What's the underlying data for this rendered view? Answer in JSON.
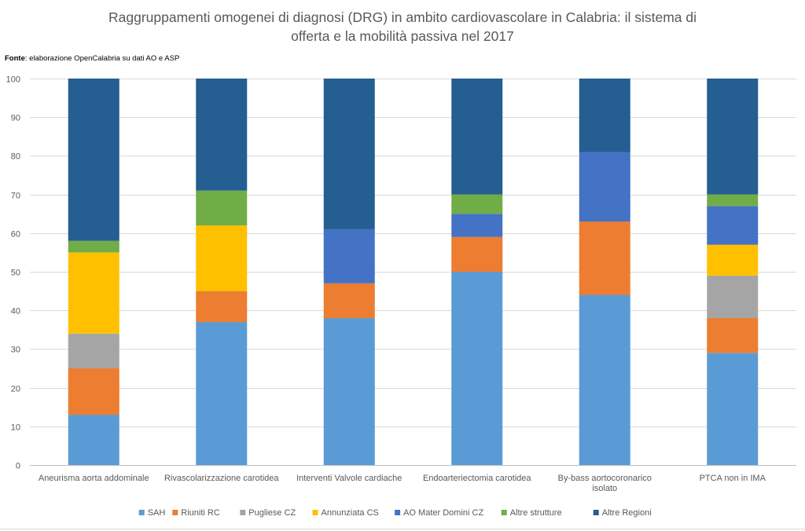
{
  "chart_data": {
    "type": "bar",
    "stacked": true,
    "title_lines": [
      "Raggruppamenti omogenei di diagnosi (DRG)  in ambito cardiovascolare in Calabria: il sistema di",
      "offerta e la mobilità passiva nel 2017"
    ],
    "source_label": "Fonte",
    "source_text": ": elaborazione OpenCalabria su dati AO e ASP",
    "categories": [
      [
        "Aneurisma aorta addominale"
      ],
      [
        "Rivascolarizzazione carotidea"
      ],
      [
        "Interventi Valvole cardiache"
      ],
      [
        "Endoarteriectomia carotidea"
      ],
      [
        "By-bass aortocoronarico",
        "isolato"
      ],
      [
        "PTCA non in IMA"
      ]
    ],
    "series": [
      {
        "name": "SAH",
        "color": "#5b9bd5",
        "values": [
          13,
          37,
          38,
          50,
          44,
          29
        ]
      },
      {
        "name": "Riuniti RC",
        "color": "#ed7d31",
        "values": [
          12,
          8,
          9,
          9,
          19,
          9
        ]
      },
      {
        "name": "Pugliese CZ",
        "color": "#a5a5a5",
        "values": [
          9,
          0,
          0,
          0,
          0,
          11
        ]
      },
      {
        "name": "Annunziata CS",
        "color": "#ffc000",
        "values": [
          21,
          17,
          0,
          0,
          0,
          8
        ]
      },
      {
        "name": "AO Mater Domini CZ",
        "color": "#4472c4",
        "values": [
          0,
          0,
          14,
          6,
          18,
          10
        ]
      },
      {
        "name": "Altre strutture",
        "color": "#70ad47",
        "values": [
          3,
          9,
          0,
          5,
          0,
          3
        ]
      },
      {
        "name": "Altre Regioni",
        "color": "#255e91",
        "values": [
          42,
          29,
          39,
          30,
          19,
          30
        ]
      }
    ],
    "ylim": [
      0,
      100
    ],
    "yticks": [
      0,
      10,
      20,
      30,
      40,
      50,
      60,
      70,
      80,
      90,
      100
    ],
    "grid": true,
    "legend_position": "bottom"
  }
}
